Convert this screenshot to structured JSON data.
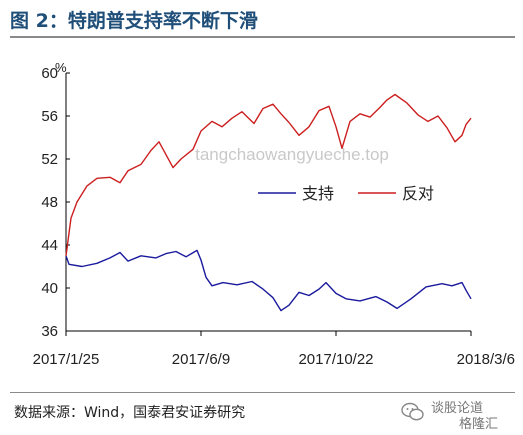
{
  "title": "图 2：特朗普支持率不断下滑",
  "watermark": "tangchaowangyueche.top",
  "source": "数据来源：Wind，国泰君安证券研究",
  "logo": {
    "line1": "谈股论道",
    "line2": "格隆汇"
  },
  "colors": {
    "title": "#1f4e79",
    "approve": "#1a1a9e",
    "disapprove": "#cc1f1f",
    "axis": "#000000"
  },
  "chart_data": {
    "type": "line",
    "y_unit": "%",
    "ylim": [
      36,
      60
    ],
    "yticks": [
      36,
      40,
      44,
      48,
      52,
      56,
      60
    ],
    "xlim": [
      "2017-01-25",
      "2018-03-06"
    ],
    "xticks": [
      "2017/1/25",
      "2017/6/9",
      "2017/10/22",
      "2018/3/6"
    ],
    "xtick_dates": [
      "2017-01-25",
      "2017-06-09",
      "2017-10-22",
      "2018-03-06"
    ],
    "legend_position": "center-right",
    "grid": false,
    "series": [
      {
        "name": "支持",
        "color": "#1a1a9e",
        "points": [
          [
            "2017-01-25",
            43.0
          ],
          [
            "2017-01-28",
            42.2
          ],
          [
            "2017-02-10",
            42.0
          ],
          [
            "2017-02-25",
            42.3
          ],
          [
            "2017-03-10",
            42.8
          ],
          [
            "2017-03-20",
            43.3
          ],
          [
            "2017-03-28",
            42.5
          ],
          [
            "2017-04-10",
            43.0
          ],
          [
            "2017-04-25",
            42.8
          ],
          [
            "2017-05-05",
            43.2
          ],
          [
            "2017-05-15",
            43.4
          ],
          [
            "2017-05-25",
            42.9
          ],
          [
            "2017-06-05",
            43.5
          ],
          [
            "2017-06-09",
            42.6
          ],
          [
            "2017-06-14",
            41.0
          ],
          [
            "2017-06-20",
            40.2
          ],
          [
            "2017-07-01",
            40.5
          ],
          [
            "2017-07-15",
            40.3
          ],
          [
            "2017-07-30",
            40.6
          ],
          [
            "2017-08-10",
            39.9
          ],
          [
            "2017-08-20",
            39.1
          ],
          [
            "2017-08-28",
            37.9
          ],
          [
            "2017-09-05",
            38.4
          ],
          [
            "2017-09-15",
            39.6
          ],
          [
            "2017-09-25",
            39.3
          ],
          [
            "2017-10-05",
            39.9
          ],
          [
            "2017-10-12",
            40.5
          ],
          [
            "2017-10-22",
            39.5
          ],
          [
            "2017-11-01",
            39.0
          ],
          [
            "2017-11-15",
            38.8
          ],
          [
            "2017-12-01",
            39.2
          ],
          [
            "2017-12-12",
            38.7
          ],
          [
            "2017-12-22",
            38.1
          ],
          [
            "2018-01-05",
            39.0
          ],
          [
            "2018-01-20",
            40.1
          ],
          [
            "2018-02-05",
            40.4
          ],
          [
            "2018-02-15",
            40.2
          ],
          [
            "2018-02-25",
            40.5
          ],
          [
            "2018-03-01",
            39.8
          ],
          [
            "2018-03-06",
            39.0
          ]
        ]
      },
      {
        "name": "反对",
        "color": "#cc1f1f",
        "points": [
          [
            "2017-01-25",
            43.0
          ],
          [
            "2017-01-30",
            46.5
          ],
          [
            "2017-02-05",
            48.0
          ],
          [
            "2017-02-15",
            49.5
          ],
          [
            "2017-02-25",
            50.2
          ],
          [
            "2017-03-10",
            50.3
          ],
          [
            "2017-03-20",
            49.8
          ],
          [
            "2017-03-28",
            50.9
          ],
          [
            "2017-04-10",
            51.5
          ],
          [
            "2017-04-20",
            52.8
          ],
          [
            "2017-04-28",
            53.6
          ],
          [
            "2017-05-05",
            52.4
          ],
          [
            "2017-05-12",
            51.2
          ],
          [
            "2017-05-20",
            52.0
          ],
          [
            "2017-06-01",
            52.9
          ],
          [
            "2017-06-09",
            54.6
          ],
          [
            "2017-06-20",
            55.5
          ],
          [
            "2017-06-30",
            55.0
          ],
          [
            "2017-07-10",
            55.8
          ],
          [
            "2017-07-20",
            56.4
          ],
          [
            "2017-08-01",
            55.3
          ],
          [
            "2017-08-10",
            56.7
          ],
          [
            "2017-08-20",
            57.1
          ],
          [
            "2017-08-28",
            56.2
          ],
          [
            "2017-09-05",
            55.4
          ],
          [
            "2017-09-15",
            54.2
          ],
          [
            "2017-09-25",
            55.0
          ],
          [
            "2017-10-05",
            56.5
          ],
          [
            "2017-10-15",
            56.9
          ],
          [
            "2017-10-22",
            55.0
          ],
          [
            "2017-10-28",
            53.0
          ],
          [
            "2017-11-05",
            55.5
          ],
          [
            "2017-11-15",
            56.2
          ],
          [
            "2017-11-25",
            55.9
          ],
          [
            "2017-12-05",
            56.8
          ],
          [
            "2017-12-12",
            57.5
          ],
          [
            "2017-12-20",
            58.0
          ],
          [
            "2018-01-01",
            57.2
          ],
          [
            "2018-01-12",
            56.1
          ],
          [
            "2018-01-22",
            55.5
          ],
          [
            "2018-02-01",
            56.0
          ],
          [
            "2018-02-10",
            54.9
          ],
          [
            "2018-02-18",
            53.6
          ],
          [
            "2018-02-25",
            54.2
          ],
          [
            "2018-03-01",
            55.2
          ],
          [
            "2018-03-06",
            55.8
          ]
        ]
      }
    ]
  }
}
